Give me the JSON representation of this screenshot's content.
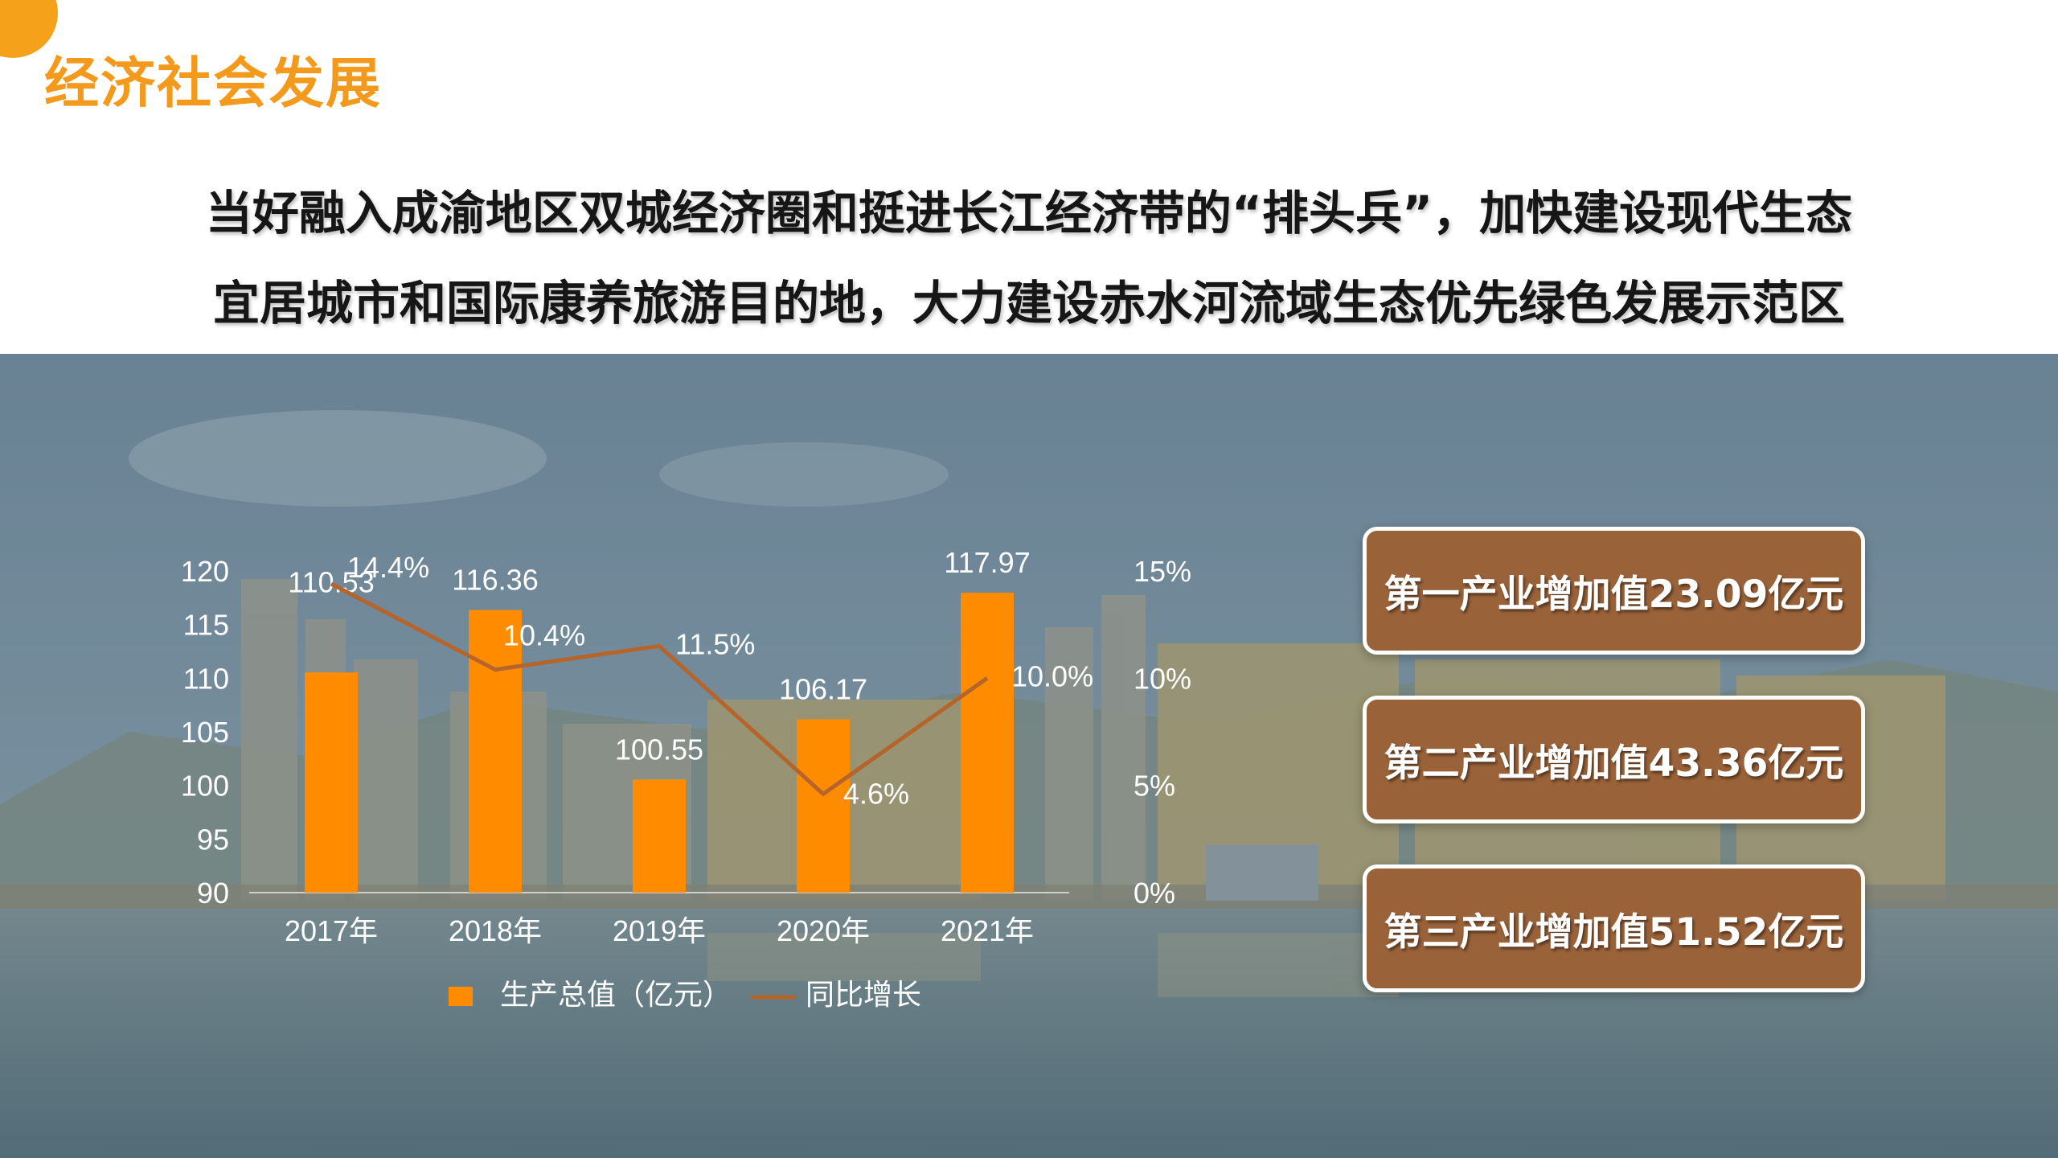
{
  "section_title": "经济社会发展",
  "headline": {
    "line1": "当好融入成渝地区双城经济圈和挺进长江经济带的“排头兵”，加快建设现代生态",
    "line2": "宜居城市和国际康养旅游目的地，大力建设赤水河流域生态优先绿色发展示范区"
  },
  "colors": {
    "accent": "#f39a1c",
    "bar": "#ff8c00",
    "line": "#b5652a",
    "card_bg": "#9a6239"
  },
  "chart_data": {
    "type": "bar",
    "categories": [
      "2017年",
      "2018年",
      "2019年",
      "2020年",
      "2021年"
    ],
    "series": [
      {
        "name": "生产总值（亿元）",
        "type": "bar",
        "axis": "left",
        "values": [
          110.53,
          116.36,
          100.55,
          106.17,
          117.97
        ],
        "labels": [
          "110.53",
          "116.36",
          "100.55",
          "106.17",
          "117.97"
        ]
      },
      {
        "name": "同比增长",
        "type": "line",
        "axis": "right",
        "values": [
          14.4,
          10.4,
          11.5,
          4.6,
          10.0
        ],
        "labels": [
          "14.4%",
          "10.4%",
          "11.5%",
          "4.6%",
          "10.0%"
        ]
      }
    ],
    "left_axis": {
      "min": 90,
      "max": 120,
      "ticks": [
        "120",
        "115",
        "110",
        "105",
        "100",
        "95",
        "90"
      ]
    },
    "right_axis": {
      "min": 0,
      "max": 15,
      "ticks": [
        "15%",
        "10%",
        "5%",
        "0%"
      ]
    },
    "legend_position": "bottom",
    "grid": false
  },
  "cards": [
    "第一产业增加值23.09亿元",
    "第二产业增加值43.36亿元",
    "第三产业增加值51.52亿元"
  ]
}
